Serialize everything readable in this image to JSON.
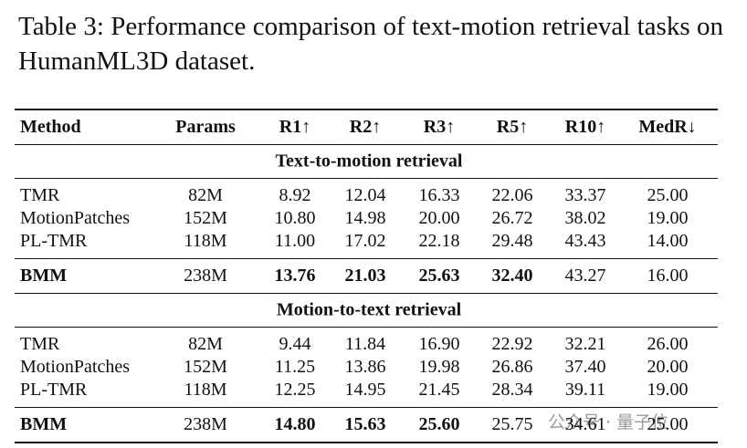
{
  "caption": "Table 3: Performance comparison of text-motion retrieval tasks on HumanML3D dataset.",
  "table": {
    "header": [
      "Method",
      "Params",
      "R1↑",
      "R2↑",
      "R3↑",
      "R5↑",
      "R10↑",
      "MedR↓"
    ],
    "sections": [
      {
        "title": "Text-to-motion retrieval",
        "rows": [
          [
            "TMR",
            "82M",
            "8.92",
            "12.04",
            "16.33",
            "22.06",
            "33.37",
            "25.00"
          ],
          [
            "MotionPatches",
            "152M",
            "10.80",
            "14.98",
            "20.00",
            "26.72",
            "38.02",
            "19.00"
          ],
          [
            "PL-TMR",
            "118M",
            "11.00",
            "17.02",
            "22.18",
            "29.48",
            "43.43",
            "14.00"
          ]
        ],
        "summary": {
          "cells": [
            "BMM",
            "238M",
            "13.76",
            "21.03",
            "25.63",
            "32.40",
            "43.27",
            "16.00"
          ],
          "bold_cols": [
            0,
            2,
            3,
            4,
            5
          ]
        }
      },
      {
        "title": "Motion-to-text retrieval",
        "rows": [
          [
            "TMR",
            "82M",
            "9.44",
            "11.84",
            "16.90",
            "22.92",
            "32.21",
            "26.00"
          ],
          [
            "MotionPatches",
            "152M",
            "11.25",
            "13.86",
            "19.98",
            "26.86",
            "37.40",
            "20.00"
          ],
          [
            "PL-TMR",
            "118M",
            "12.25",
            "14.95",
            "21.45",
            "28.34",
            "39.11",
            "19.00"
          ]
        ],
        "summary": {
          "cells": [
            "BMM",
            "238M",
            "14.80",
            "15.63",
            "25.60",
            "25.75",
            "34.61",
            "25.00"
          ],
          "bold_cols": [
            0,
            2,
            3,
            4
          ]
        }
      }
    ]
  },
  "watermark": "公众号 · 量子位"
}
